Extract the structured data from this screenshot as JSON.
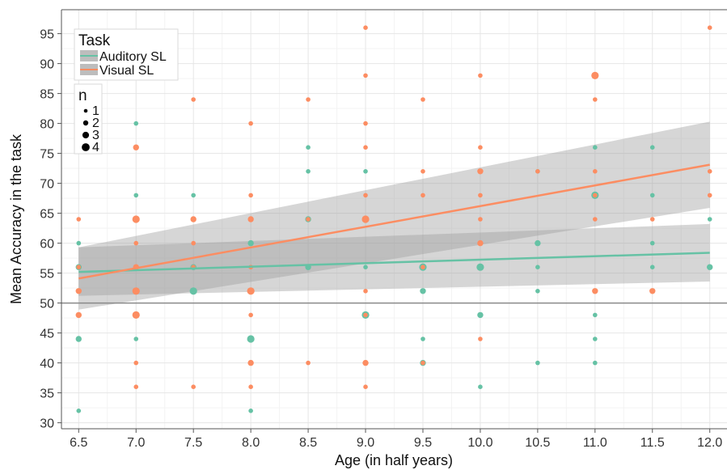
{
  "chart_data": {
    "type": "scatter",
    "title": "",
    "xlabel": "Age (in half years)",
    "ylabel": "Mean Accuracy in the task",
    "xlim": [
      6.35,
      12.15
    ],
    "ylim": [
      29,
      99
    ],
    "x_ticks": [
      6.5,
      7.0,
      7.5,
      8.0,
      8.5,
      9.0,
      9.5,
      10.0,
      10.5,
      11.0,
      11.5,
      12.0
    ],
    "x_tick_labels": [
      "6.5",
      "7.0",
      "7.5",
      "8.0",
      "8.5",
      "9.0",
      "9.5",
      "10.0",
      "10.5",
      "11.0",
      "11.5",
      "12.0"
    ],
    "y_ticks": [
      30,
      35,
      40,
      45,
      50,
      55,
      60,
      65,
      70,
      75,
      80,
      85,
      90,
      95
    ],
    "y_tick_labels": [
      "30",
      "35",
      "40",
      "45",
      "50",
      "55",
      "60",
      "65",
      "70",
      "75",
      "80",
      "85",
      "90",
      "95"
    ],
    "reference_line_y": 50,
    "grid": true,
    "legend": {
      "placement": "top-left",
      "color_title": "Task",
      "size_title": "n",
      "size_labels": [
        "1",
        "2",
        "3",
        "4"
      ]
    },
    "series": [
      {
        "name": "Auditory SL",
        "color": "#66c2a5",
        "points": [
          {
            "x": 6.5,
            "y": 60,
            "n": 1
          },
          {
            "x": 6.5,
            "y": 56,
            "n": 2
          },
          {
            "x": 6.5,
            "y": 52,
            "n": 1
          },
          {
            "x": 6.5,
            "y": 44,
            "n": 2
          },
          {
            "x": 6.5,
            "y": 32,
            "n": 1
          },
          {
            "x": 7.0,
            "y": 80,
            "n": 1
          },
          {
            "x": 7.0,
            "y": 68,
            "n": 1
          },
          {
            "x": 7.0,
            "y": 56,
            "n": 1
          },
          {
            "x": 7.0,
            "y": 52,
            "n": 1
          },
          {
            "x": 7.0,
            "y": 44,
            "n": 1
          },
          {
            "x": 7.5,
            "y": 68,
            "n": 1
          },
          {
            "x": 7.5,
            "y": 56,
            "n": 2
          },
          {
            "x": 7.5,
            "y": 52,
            "n": 3
          },
          {
            "x": 8.0,
            "y": 60,
            "n": 2
          },
          {
            "x": 8.0,
            "y": 56,
            "n": 1
          },
          {
            "x": 8.0,
            "y": 44,
            "n": 3
          },
          {
            "x": 8.0,
            "y": 32,
            "n": 1
          },
          {
            "x": 8.5,
            "y": 76,
            "n": 1
          },
          {
            "x": 8.5,
            "y": 72,
            "n": 1
          },
          {
            "x": 8.5,
            "y": 64,
            "n": 2
          },
          {
            "x": 8.5,
            "y": 56,
            "n": 2
          },
          {
            "x": 9.0,
            "y": 72,
            "n": 1
          },
          {
            "x": 9.0,
            "y": 56,
            "n": 1
          },
          {
            "x": 9.0,
            "y": 48,
            "n": 3
          },
          {
            "x": 9.5,
            "y": 56,
            "n": 3
          },
          {
            "x": 9.5,
            "y": 52,
            "n": 2
          },
          {
            "x": 9.5,
            "y": 44,
            "n": 1
          },
          {
            "x": 9.5,
            "y": 40,
            "n": 2
          },
          {
            "x": 10.0,
            "y": 56,
            "n": 3
          },
          {
            "x": 10.0,
            "y": 48,
            "n": 2
          },
          {
            "x": 10.0,
            "y": 36,
            "n": 1
          },
          {
            "x": 10.5,
            "y": 72,
            "n": 1
          },
          {
            "x": 10.5,
            "y": 60,
            "n": 2
          },
          {
            "x": 10.5,
            "y": 56,
            "n": 1
          },
          {
            "x": 10.5,
            "y": 52,
            "n": 1
          },
          {
            "x": 10.5,
            "y": 40,
            "n": 1
          },
          {
            "x": 11.0,
            "y": 76,
            "n": 1
          },
          {
            "x": 11.0,
            "y": 68,
            "n": 3
          },
          {
            "x": 11.0,
            "y": 48,
            "n": 1
          },
          {
            "x": 11.0,
            "y": 44,
            "n": 1
          },
          {
            "x": 11.0,
            "y": 40,
            "n": 1
          },
          {
            "x": 11.5,
            "y": 76,
            "n": 1
          },
          {
            "x": 11.5,
            "y": 68,
            "n": 1
          },
          {
            "x": 11.5,
            "y": 60,
            "n": 1
          },
          {
            "x": 11.5,
            "y": 56,
            "n": 1
          },
          {
            "x": 11.5,
            "y": 52,
            "n": 1
          },
          {
            "x": 12.0,
            "y": 64,
            "n": 1
          },
          {
            "x": 12.0,
            "y": 56,
            "n": 2
          }
        ],
        "fit": {
          "x": [
            6.5,
            12.0
          ],
          "y": [
            55.2,
            58.4
          ],
          "lower": [
            51.2,
            53.6
          ],
          "upper": [
            59.3,
            63.2
          ]
        }
      },
      {
        "name": "Visual SL",
        "color": "#fc8d62",
        "points": [
          {
            "x": 6.5,
            "y": 64,
            "n": 1
          },
          {
            "x": 6.5,
            "y": 56,
            "n": 1
          },
          {
            "x": 6.5,
            "y": 52,
            "n": 2
          },
          {
            "x": 6.5,
            "y": 48,
            "n": 2
          },
          {
            "x": 7.0,
            "y": 76,
            "n": 2
          },
          {
            "x": 7.0,
            "y": 64,
            "n": 3
          },
          {
            "x": 7.0,
            "y": 60,
            "n": 1
          },
          {
            "x": 7.0,
            "y": 56,
            "n": 2
          },
          {
            "x": 7.0,
            "y": 52,
            "n": 3
          },
          {
            "x": 7.0,
            "y": 48,
            "n": 3
          },
          {
            "x": 7.0,
            "y": 40,
            "n": 1
          },
          {
            "x": 7.0,
            "y": 36,
            "n": 1
          },
          {
            "x": 7.5,
            "y": 84,
            "n": 1
          },
          {
            "x": 7.5,
            "y": 64,
            "n": 2
          },
          {
            "x": 7.5,
            "y": 60,
            "n": 1
          },
          {
            "x": 7.5,
            "y": 56,
            "n": 1
          },
          {
            "x": 7.5,
            "y": 36,
            "n": 1
          },
          {
            "x": 8.0,
            "y": 80,
            "n": 1
          },
          {
            "x": 8.0,
            "y": 68,
            "n": 1
          },
          {
            "x": 8.0,
            "y": 64,
            "n": 2
          },
          {
            "x": 8.0,
            "y": 56,
            "n": 1
          },
          {
            "x": 8.0,
            "y": 52,
            "n": 3
          },
          {
            "x": 8.0,
            "y": 48,
            "n": 1
          },
          {
            "x": 8.0,
            "y": 40,
            "n": 2
          },
          {
            "x": 8.0,
            "y": 36,
            "n": 1
          },
          {
            "x": 8.5,
            "y": 84,
            "n": 1
          },
          {
            "x": 8.5,
            "y": 64,
            "n": 1
          },
          {
            "x": 8.5,
            "y": 40,
            "n": 1
          },
          {
            "x": 9.0,
            "y": 96,
            "n": 1
          },
          {
            "x": 9.0,
            "y": 88,
            "n": 1
          },
          {
            "x": 9.0,
            "y": 80,
            "n": 1
          },
          {
            "x": 9.0,
            "y": 76,
            "n": 1
          },
          {
            "x": 9.0,
            "y": 68,
            "n": 1
          },
          {
            "x": 9.0,
            "y": 64,
            "n": 3
          },
          {
            "x": 9.0,
            "y": 52,
            "n": 1
          },
          {
            "x": 9.0,
            "y": 48,
            "n": 1
          },
          {
            "x": 9.0,
            "y": 40,
            "n": 2
          },
          {
            "x": 9.0,
            "y": 36,
            "n": 1
          },
          {
            "x": 9.5,
            "y": 84,
            "n": 1
          },
          {
            "x": 9.5,
            "y": 72,
            "n": 1
          },
          {
            "x": 9.5,
            "y": 68,
            "n": 1
          },
          {
            "x": 9.5,
            "y": 56,
            "n": 1
          },
          {
            "x": 9.5,
            "y": 40,
            "n": 1
          },
          {
            "x": 10.0,
            "y": 88,
            "n": 1
          },
          {
            "x": 10.0,
            "y": 76,
            "n": 1
          },
          {
            "x": 10.0,
            "y": 72,
            "n": 2
          },
          {
            "x": 10.0,
            "y": 68,
            "n": 1
          },
          {
            "x": 10.0,
            "y": 64,
            "n": 1
          },
          {
            "x": 10.0,
            "y": 60,
            "n": 2
          },
          {
            "x": 10.0,
            "y": 44,
            "n": 1
          },
          {
            "x": 10.5,
            "y": 72,
            "n": 1
          },
          {
            "x": 11.0,
            "y": 88,
            "n": 3
          },
          {
            "x": 11.0,
            "y": 84,
            "n": 1
          },
          {
            "x": 11.0,
            "y": 72,
            "n": 1
          },
          {
            "x": 11.0,
            "y": 68,
            "n": 1
          },
          {
            "x": 11.0,
            "y": 64,
            "n": 1
          },
          {
            "x": 11.0,
            "y": 52,
            "n": 2
          },
          {
            "x": 11.5,
            "y": 64,
            "n": 1
          },
          {
            "x": 11.5,
            "y": 52,
            "n": 2
          },
          {
            "x": 12.0,
            "y": 96,
            "n": 1
          },
          {
            "x": 12.0,
            "y": 72,
            "n": 1
          },
          {
            "x": 12.0,
            "y": 68,
            "n": 1
          }
        ],
        "fit": {
          "x": [
            6.5,
            12.0
          ],
          "y": [
            54.1,
            73.1
          ],
          "lower": [
            48.9,
            65.9
          ],
          "upper": [
            59.3,
            80.3
          ]
        }
      }
    ]
  }
}
